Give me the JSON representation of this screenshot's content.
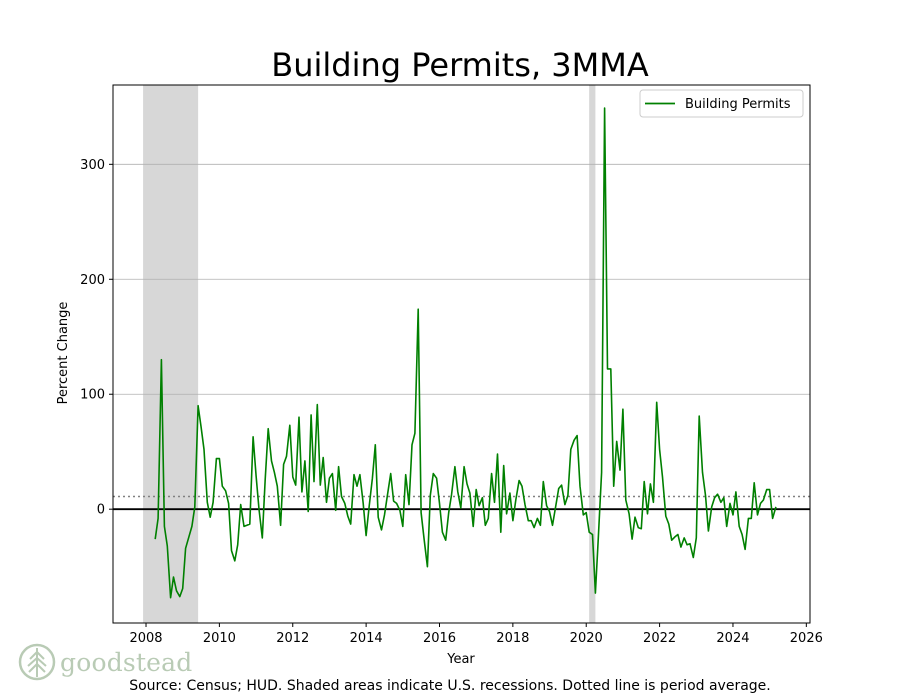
{
  "footer": {
    "source": "Source: Census; HUD. Shaded areas indicate U.S. recessions. Dotted line is period average.",
    "logo_text": "goodstead"
  },
  "chart_data": {
    "type": "line",
    "title": "Building Permits, 3MMA",
    "xlabel": "Year",
    "ylabel": "Percent Change",
    "xlim": [
      2007.1,
      2026.1
    ],
    "ylim": [
      -99,
      369
    ],
    "x_ticks": [
      2008,
      2010,
      2012,
      2014,
      2016,
      2018,
      2020,
      2022,
      2024,
      2026
    ],
    "y_ticks": [
      0,
      100,
      200,
      300
    ],
    "grid": "horizontal",
    "legend": "top-right",
    "average": 11,
    "recessions": [
      [
        2007.92,
        2009.42
      ],
      [
        2020.08,
        2020.25
      ]
    ],
    "colors": {
      "series": "#008000",
      "recession": "#d3d3d3",
      "grid": "#b0b0b0",
      "average": "#808080"
    },
    "series": [
      {
        "name": "Building Permits",
        "points": [
          [
            2008.25,
            -26
          ],
          [
            2008.33,
            -8
          ],
          [
            2008.42,
            130
          ],
          [
            2008.5,
            -15
          ],
          [
            2008.58,
            -32
          ],
          [
            2008.67,
            -77
          ],
          [
            2008.75,
            -59
          ],
          [
            2008.83,
            -71
          ],
          [
            2008.92,
            -76
          ],
          [
            2009.0,
            -69
          ],
          [
            2009.08,
            -34
          ],
          [
            2009.17,
            -24
          ],
          [
            2009.25,
            -15
          ],
          [
            2009.33,
            2
          ],
          [
            2009.42,
            90
          ],
          [
            2009.5,
            72
          ],
          [
            2009.58,
            52
          ],
          [
            2009.67,
            6
          ],
          [
            2009.75,
            -7
          ],
          [
            2009.83,
            6
          ],
          [
            2009.92,
            44
          ],
          [
            2010.0,
            44
          ],
          [
            2010.08,
            20
          ],
          [
            2010.17,
            16
          ],
          [
            2010.25,
            5
          ],
          [
            2010.33,
            -36
          ],
          [
            2010.42,
            -45
          ],
          [
            2010.5,
            -31
          ],
          [
            2010.58,
            4
          ],
          [
            2010.67,
            -15
          ],
          [
            2010.75,
            -14
          ],
          [
            2010.83,
            -13
          ],
          [
            2010.92,
            63
          ],
          [
            2011.0,
            29
          ],
          [
            2011.08,
            0
          ],
          [
            2011.17,
            -25
          ],
          [
            2011.25,
            26
          ],
          [
            2011.33,
            70
          ],
          [
            2011.42,
            42
          ],
          [
            2011.5,
            32
          ],
          [
            2011.58,
            20
          ],
          [
            2011.67,
            -14
          ],
          [
            2011.75,
            39
          ],
          [
            2011.83,
            46
          ],
          [
            2011.92,
            73
          ],
          [
            2012.0,
            28
          ],
          [
            2012.08,
            21
          ],
          [
            2012.17,
            80
          ],
          [
            2012.25,
            15
          ],
          [
            2012.33,
            42
          ],
          [
            2012.42,
            -2
          ],
          [
            2012.5,
            82
          ],
          [
            2012.58,
            24
          ],
          [
            2012.67,
            91
          ],
          [
            2012.75,
            21
          ],
          [
            2012.83,
            45
          ],
          [
            2012.92,
            6
          ],
          [
            2013.0,
            27
          ],
          [
            2013.08,
            31
          ],
          [
            2013.17,
            -1
          ],
          [
            2013.25,
            37
          ],
          [
            2013.33,
            11
          ],
          [
            2013.42,
            5
          ],
          [
            2013.5,
            -6
          ],
          [
            2013.58,
            -13
          ],
          [
            2013.67,
            30
          ],
          [
            2013.75,
            20
          ],
          [
            2013.83,
            30
          ],
          [
            2013.92,
            5
          ],
          [
            2014.0,
            -23
          ],
          [
            2014.08,
            2
          ],
          [
            2014.17,
            27
          ],
          [
            2014.25,
            56
          ],
          [
            2014.33,
            -7
          ],
          [
            2014.42,
            -18
          ],
          [
            2014.5,
            -5
          ],
          [
            2014.58,
            12
          ],
          [
            2014.67,
            31
          ],
          [
            2014.75,
            7
          ],
          [
            2014.83,
            5
          ],
          [
            2014.92,
            -1
          ],
          [
            2015.0,
            -15
          ],
          [
            2015.08,
            30
          ],
          [
            2015.17,
            4
          ],
          [
            2015.25,
            56
          ],
          [
            2015.33,
            66
          ],
          [
            2015.42,
            174
          ],
          [
            2015.5,
            -3
          ],
          [
            2015.58,
            -26
          ],
          [
            2015.67,
            -50
          ],
          [
            2015.75,
            12
          ],
          [
            2015.83,
            31
          ],
          [
            2015.92,
            27
          ],
          [
            2016.0,
            5
          ],
          [
            2016.08,
            -20
          ],
          [
            2016.17,
            -27
          ],
          [
            2016.25,
            -3
          ],
          [
            2016.33,
            13
          ],
          [
            2016.42,
            37
          ],
          [
            2016.5,
            15
          ],
          [
            2016.58,
            1
          ],
          [
            2016.67,
            37
          ],
          [
            2016.75,
            22
          ],
          [
            2016.83,
            14
          ],
          [
            2016.92,
            -15
          ],
          [
            2017.0,
            17
          ],
          [
            2017.08,
            3
          ],
          [
            2017.17,
            10
          ],
          [
            2017.25,
            -14
          ],
          [
            2017.33,
            -8
          ],
          [
            2017.42,
            31
          ],
          [
            2017.5,
            6
          ],
          [
            2017.58,
            48
          ],
          [
            2017.67,
            -20
          ],
          [
            2017.75,
            38
          ],
          [
            2017.83,
            -4
          ],
          [
            2017.92,
            14
          ],
          [
            2018.0,
            -10
          ],
          [
            2018.08,
            8
          ],
          [
            2018.17,
            25
          ],
          [
            2018.25,
            20
          ],
          [
            2018.33,
            4
          ],
          [
            2018.42,
            -10
          ],
          [
            2018.5,
            -10
          ],
          [
            2018.58,
            -16
          ],
          [
            2018.67,
            -8
          ],
          [
            2018.75,
            -14
          ],
          [
            2018.83,
            24
          ],
          [
            2018.92,
            3
          ],
          [
            2019.0,
            -2
          ],
          [
            2019.08,
            -14
          ],
          [
            2019.17,
            3
          ],
          [
            2019.25,
            18
          ],
          [
            2019.33,
            21
          ],
          [
            2019.42,
            4
          ],
          [
            2019.5,
            12
          ],
          [
            2019.58,
            52
          ],
          [
            2019.67,
            60
          ],
          [
            2019.75,
            64
          ],
          [
            2019.83,
            20
          ],
          [
            2019.92,
            -5
          ],
          [
            2020.0,
            -3
          ],
          [
            2020.08,
            -20
          ],
          [
            2020.17,
            -22
          ],
          [
            2020.25,
            -73
          ],
          [
            2020.33,
            -25
          ],
          [
            2020.42,
            32
          ],
          [
            2020.5,
            349
          ],
          [
            2020.58,
            122
          ],
          [
            2020.67,
            122
          ],
          [
            2020.75,
            20
          ],
          [
            2020.83,
            59
          ],
          [
            2020.92,
            34
          ],
          [
            2021.0,
            87
          ],
          [
            2021.08,
            8
          ],
          [
            2021.17,
            -4
          ],
          [
            2021.25,
            -26
          ],
          [
            2021.33,
            -7
          ],
          [
            2021.42,
            -16
          ],
          [
            2021.5,
            -17
          ],
          [
            2021.58,
            24
          ],
          [
            2021.67,
            -4
          ],
          [
            2021.75,
            22
          ],
          [
            2021.83,
            6
          ],
          [
            2021.92,
            93
          ],
          [
            2022.0,
            52
          ],
          [
            2022.08,
            28
          ],
          [
            2022.17,
            -6
          ],
          [
            2022.25,
            -13
          ],
          [
            2022.33,
            -27
          ],
          [
            2022.42,
            -24
          ],
          [
            2022.5,
            -22
          ],
          [
            2022.58,
            -33
          ],
          [
            2022.67,
            -25
          ],
          [
            2022.75,
            -31
          ],
          [
            2022.83,
            -30
          ],
          [
            2022.92,
            -42
          ],
          [
            2023.0,
            -25
          ],
          [
            2023.08,
            81
          ],
          [
            2023.17,
            32
          ],
          [
            2023.25,
            12
          ],
          [
            2023.33,
            -19
          ],
          [
            2023.42,
            2
          ],
          [
            2023.5,
            10
          ],
          [
            2023.58,
            13
          ],
          [
            2023.67,
            6
          ],
          [
            2023.75,
            10
          ],
          [
            2023.83,
            -15
          ],
          [
            2023.92,
            5
          ],
          [
            2024.0,
            -5
          ],
          [
            2024.08,
            15
          ],
          [
            2024.17,
            -15
          ],
          [
            2024.25,
            -22
          ],
          [
            2024.33,
            -35
          ],
          [
            2024.42,
            -8
          ],
          [
            2024.5,
            -8
          ],
          [
            2024.58,
            23
          ],
          [
            2024.67,
            -5
          ],
          [
            2024.75,
            5
          ],
          [
            2024.83,
            8
          ],
          [
            2024.92,
            17
          ],
          [
            2025.0,
            17
          ],
          [
            2025.08,
            -8
          ],
          [
            2025.17,
            2
          ]
        ]
      }
    ]
  }
}
